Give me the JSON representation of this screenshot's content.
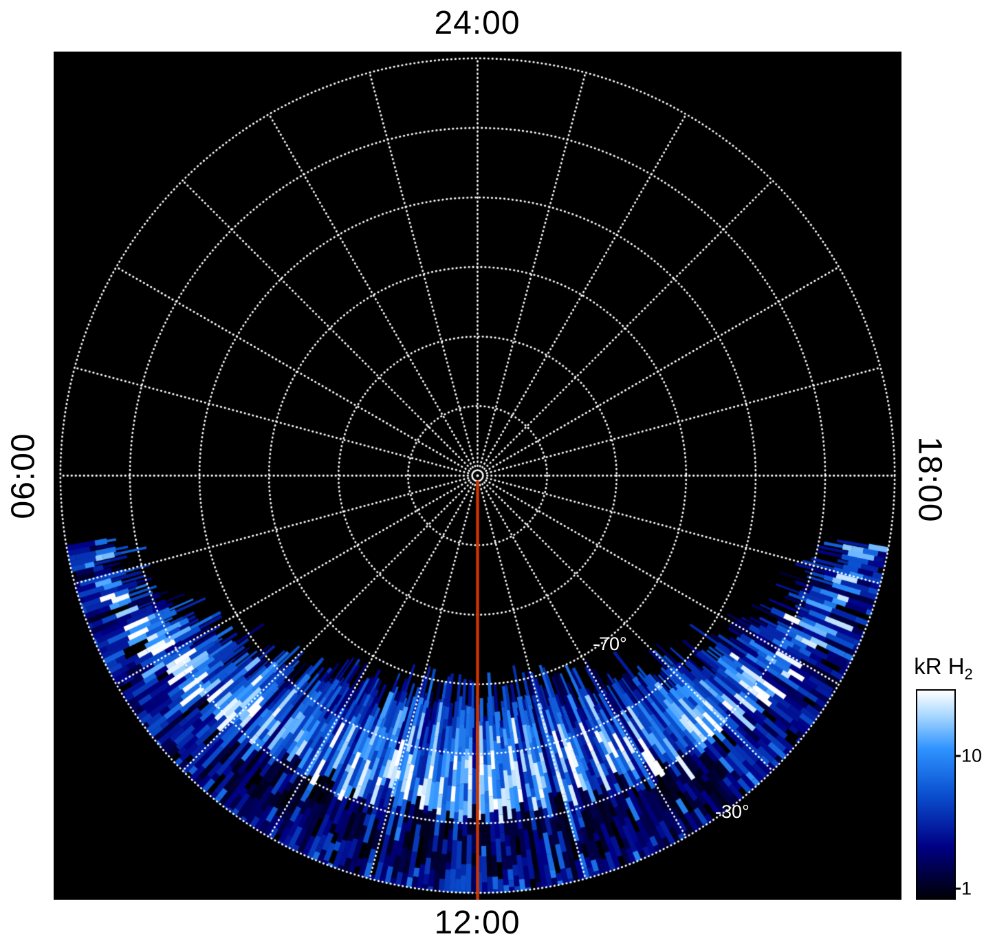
{
  "page": {
    "background": "#ffffff"
  },
  "chart_data": {
    "type": "heatmap",
    "projection": "polar-southern-hemisphere",
    "title": "",
    "units": "kR H2",
    "angular_axis": {
      "label_type": "local-time",
      "labels": [
        {
          "text": "24:00",
          "position": "top"
        },
        {
          "text": "06:00",
          "position": "left"
        },
        {
          "text": "12:00",
          "position": "bottom"
        },
        {
          "text": "18:00",
          "position": "right"
        }
      ],
      "spoke_step_deg": 15
    },
    "radial_axis": {
      "pole_latitude_deg": -90,
      "outer_latitude_deg": -30,
      "outer_colat_deg": 60,
      "ring_colats_deg": [
        10,
        20,
        30,
        40,
        50,
        60
      ],
      "ring_labels": [
        {
          "text": "-70°",
          "latitude_deg": -70
        },
        {
          "text": "-30°",
          "latitude_deg": -30
        }
      ],
      "outer_radius_frac": 0.984
    },
    "grid": {
      "color": "#ffffff",
      "style": "dotted"
    },
    "noon_meridian": {
      "color": "#cc3600",
      "hours": 12
    },
    "colorbar": {
      "label_main": "kR H",
      "label_sub": "2",
      "scale": "log",
      "min": 1,
      "max": 30,
      "ticks": [
        {
          "label": "10",
          "frac_from_top": 0.32
        },
        {
          "label": "1",
          "frac_from_top": 0.96
        }
      ],
      "stops": [
        {
          "p": 0.0,
          "c": "#000006"
        },
        {
          "p": 0.25,
          "c": "#000085"
        },
        {
          "p": 0.5,
          "c": "#0a50d0"
        },
        {
          "p": 0.72,
          "c": "#2f93ff"
        },
        {
          "p": 0.88,
          "c": "#a8d8ff"
        },
        {
          "p": 1.0,
          "c": "#ffffff"
        }
      ]
    },
    "emission": {
      "description": "Patchy H2 auroral emission confined to the dayside (06:00-18:00 LT) sector between about -57° and -30° latitude; brightest in a mottled arc near -45° latitude on the morning and afternoon sides, with dark broken gaps near local noon between -40° and -33°; black (no emission) over the entire nightside and polar cap.",
      "local_time_extent_hours": [
        6.7,
        17.3
      ],
      "latitude_extent_deg": [
        -57,
        -30
      ],
      "hours_profile": [
        6,
        7,
        8,
        9,
        10,
        11,
        12,
        13,
        14,
        15,
        16,
        17,
        18
      ],
      "poleward_boundary_lat_deg": [
        -34,
        -44,
        -52,
        -55,
        -56,
        -55,
        -55,
        -55,
        -56,
        -55,
        -52,
        -44,
        -34
      ],
      "peak_intensity_kR": [
        3,
        8,
        14,
        18,
        16,
        12,
        10,
        12,
        18,
        16,
        12,
        7,
        3
      ]
    },
    "emission_render": {
      "theta_max_deg": 80,
      "theta_step_deg": 0.75,
      "inner_colat_noon_deg": 34,
      "inner_colat_edge_deg": 56,
      "seed": 20240607
    }
  }
}
